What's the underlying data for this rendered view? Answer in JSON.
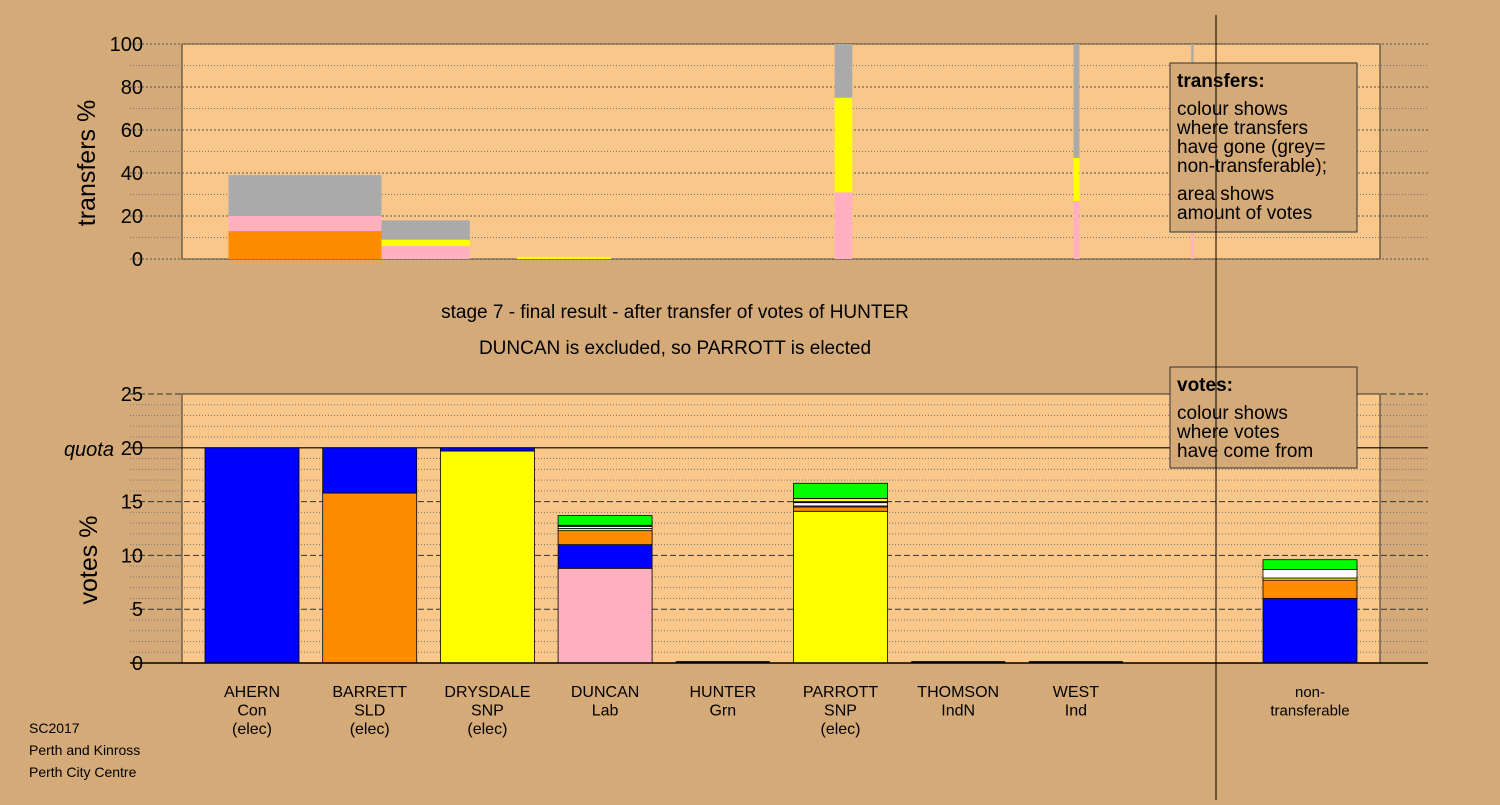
{
  "colors": {
    "background": "#d4aa78",
    "plot_area": "#ffcc8c",
    "Con": "#0000ff",
    "SLD": "#ff8c00",
    "SNP": "#ffff00",
    "Lab": "#ffb0c0",
    "Grn": "#00ff00",
    "IndN": "#ffffff",
    "Ind": "#000000",
    "non-transferable": "#aaaaaa"
  },
  "titles": {
    "line1": "stage 7 - final result - after transfer of votes of HUNTER",
    "line2": "DUNCAN is excluded, so PARROTT is elected"
  },
  "legend_top": {
    "heading": "transfers:",
    "lines_a": [
      "colour shows",
      "where transfers",
      "have gone (grey=",
      "non-transferable);"
    ],
    "lines_b": [
      "area shows",
      "amount of votes"
    ]
  },
  "legend_bottom": {
    "heading": "votes:",
    "lines": [
      "colour shows",
      "where votes",
      "have come from"
    ]
  },
  "quota_label": "quota",
  "footer": [
    "SC2017",
    "Perth and Kinross",
    "Perth City Centre"
  ],
  "chart_data": [
    {
      "type": "bar",
      "name": "transfers",
      "ylabel": "transfers %",
      "ylim": [
        0,
        100
      ],
      "yticks": [
        0,
        20,
        40,
        60,
        80,
        100
      ],
      "grid": "dotted every 10",
      "bars": [
        {
          "x_from": -0.2,
          "x_to": 1.1,
          "segments": [
            {
              "party": "SLD",
              "value": 13
            },
            {
              "party": "Lab",
              "value": 7
            },
            {
              "party": "non-transferable",
              "value": 19
            }
          ]
        },
        {
          "x_from": 1.1,
          "x_to": 1.85,
          "segments": [
            {
              "party": "Lab",
              "value": 6
            },
            {
              "party": "SNP",
              "value": 3
            },
            {
              "party": "non-transferable",
              "value": 9
            }
          ]
        },
        {
          "x_from": 2.25,
          "x_to": 3.05,
          "segments": [
            {
              "party": "SNP",
              "value": 1
            }
          ]
        },
        {
          "x_from": 4.95,
          "x_to": 5.1,
          "segments": [
            {
              "party": "Lab",
              "value": 31
            },
            {
              "party": "SNP",
              "value": 44
            },
            {
              "party": "non-transferable",
              "value": 25
            }
          ]
        },
        {
          "x_from": 6.98,
          "x_to": 7.03,
          "segments": [
            {
              "party": "Lab",
              "value": 27
            },
            {
              "party": "SNP",
              "value": 20
            },
            {
              "party": "non-transferable",
              "value": 53
            }
          ]
        },
        {
          "x_from": 7.98,
          "x_to": 8.0,
          "segments": [
            {
              "party": "Lab",
              "value": 18
            },
            {
              "party": "SNP",
              "value": 10
            },
            {
              "party": "non-transferable",
              "value": 72
            }
          ]
        }
      ]
    },
    {
      "type": "bar",
      "name": "votes",
      "ylabel": "votes %",
      "ylim": [
        0,
        25
      ],
      "yticks": [
        0,
        5,
        10,
        15,
        20,
        25
      ],
      "quota": 20,
      "grid": "dashed every 5, dotted every 1",
      "categories": [
        {
          "lines": [
            "AHERN",
            "Con",
            "(elec)"
          ],
          "segments": [
            {
              "party": "Con",
              "value": 20
            }
          ]
        },
        {
          "lines": [
            "BARRETT",
            "SLD",
            "(elec)"
          ],
          "segments": [
            {
              "party": "SLD",
              "value": 15.8
            },
            {
              "party": "Con",
              "value": 4.2
            }
          ]
        },
        {
          "lines": [
            "DRYSDALE",
            "SNP",
            "(elec)"
          ],
          "segments": [
            {
              "party": "SNP",
              "value": 19.7
            },
            {
              "party": "Con",
              "value": 0.3
            }
          ]
        },
        {
          "lines": [
            "DUNCAN",
            "Lab"
          ],
          "segments": [
            {
              "party": "Lab",
              "value": 8.8
            },
            {
              "party": "Con",
              "value": 2.2
            },
            {
              "party": "SLD",
              "value": 1.3
            },
            {
              "party": "SNP",
              "value": 0.2
            },
            {
              "party": "IndN",
              "value": 0.2
            },
            {
              "party": "Ind",
              "value": 0.1
            },
            {
              "party": "Grn",
              "value": 0.9
            }
          ]
        },
        {
          "lines": [
            "HUNTER",
            "Grn"
          ],
          "segments": []
        },
        {
          "lines": [
            "PARROTT",
            "SNP",
            "(elec)"
          ],
          "segments": [
            {
              "party": "SNP",
              "value": 14.1
            },
            {
              "party": "SLD",
              "value": 0.4
            },
            {
              "party": "Lab",
              "value": 0.1
            },
            {
              "party": "IndN",
              "value": 0.3
            },
            {
              "party": "Ind",
              "value": 0.1
            },
            {
              "party": "SNP",
              "value": 0.3
            },
            {
              "party": "Grn",
              "value": 1.4
            }
          ]
        },
        {
          "lines": [
            "THOMSON",
            "IndN"
          ],
          "segments": []
        },
        {
          "lines": [
            "WEST",
            "Ind"
          ],
          "segments": []
        },
        {
          "lines": [
            "non-",
            "transferable"
          ],
          "segments": [
            {
              "party": "Con",
              "value": 6.0
            },
            {
              "party": "SLD",
              "value": 1.7
            },
            {
              "party": "SNP",
              "value": 0.2
            },
            {
              "party": "IndN",
              "value": 0.8
            },
            {
              "party": "Grn",
              "value": 0.9
            }
          ]
        }
      ]
    }
  ]
}
